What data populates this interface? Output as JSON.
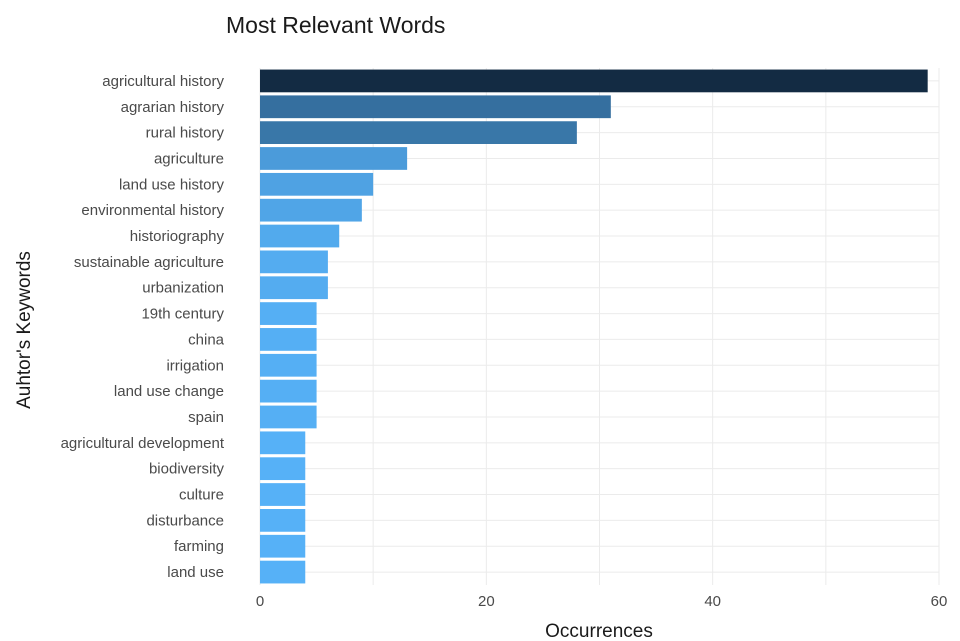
{
  "chart_data": {
    "type": "bar",
    "orientation": "horizontal",
    "title": "Most Relevant Words",
    "xlabel": "Occurrences",
    "ylabel": "Auhtor's Keywords",
    "xlim": [
      0,
      60
    ],
    "x_ticks": [
      0,
      20,
      40,
      60
    ],
    "grid": true,
    "categories": [
      "agricultural history",
      "agrarian history",
      "rural history",
      "agriculture",
      "land use history",
      "environmental history",
      "historiography",
      "sustainable agriculture",
      "urbanization",
      "19th century",
      "china",
      "irrigation",
      "land use change",
      "spain",
      "agricultural development",
      "biodiversity",
      "culture",
      "disturbance",
      "farming",
      "land use"
    ],
    "values": [
      59,
      31,
      28,
      13,
      10,
      9,
      7,
      6,
      6,
      5,
      5,
      5,
      5,
      5,
      4,
      4,
      4,
      4,
      4,
      4
    ],
    "color_scale": {
      "low": "#56b1f7",
      "high": "#132b43"
    }
  }
}
